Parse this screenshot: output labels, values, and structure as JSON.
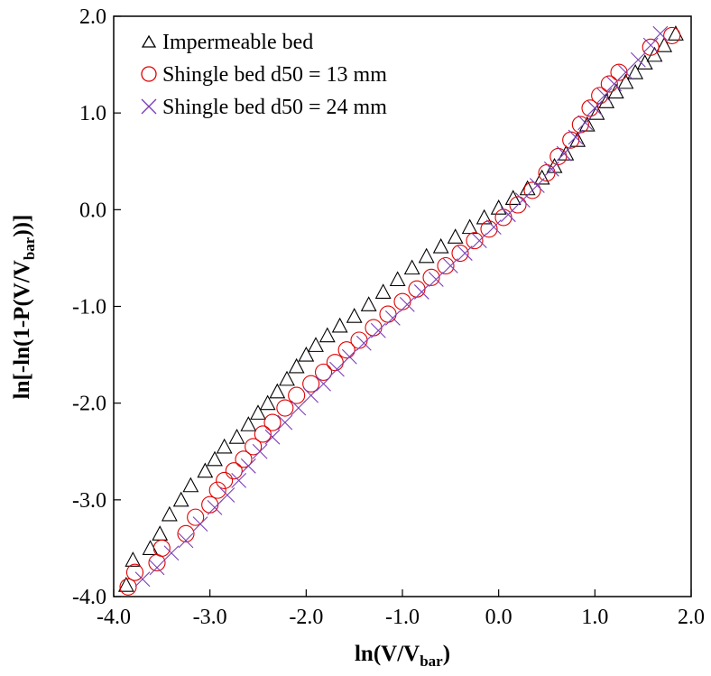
{
  "chart_data": {
    "type": "scatter",
    "xlabel": {
      "main": "ln(V/V",
      "sub": "bar",
      "end": ")"
    },
    "ylabel": {
      "main": "ln[-ln(1-P(V/V",
      "sub": "bar",
      "end": "))]"
    },
    "xlim": [
      -4.0,
      2.0
    ],
    "ylim": [
      -4.0,
      2.0
    ],
    "x_ticks": [
      -4.0,
      -3.0,
      -2.0,
      -1.0,
      0.0,
      1.0,
      2.0
    ],
    "y_ticks": [
      -4.0,
      -3.0,
      -2.0,
      -1.0,
      0.0,
      1.0,
      2.0
    ],
    "x_tick_labels": [
      "-4.0",
      "-3.0",
      "-2.0",
      "-1.0",
      "0.0",
      "1.0",
      "2.0"
    ],
    "y_tick_labels": [
      "-4.0",
      "-3.0",
      "-2.0",
      "-1.0",
      "0.0",
      "1.0",
      "2.0"
    ],
    "grid": false,
    "legend_position": "top-left",
    "series": [
      {
        "name": "Impermeable bed",
        "marker": "triangle",
        "color": "#000000",
        "points": [
          [
            -3.87,
            -3.88
          ],
          [
            -3.8,
            -3.62
          ],
          [
            -3.62,
            -3.5
          ],
          [
            -3.52,
            -3.35
          ],
          [
            -3.42,
            -3.15
          ],
          [
            -3.3,
            -3.0
          ],
          [
            -3.2,
            -2.85
          ],
          [
            -3.05,
            -2.7
          ],
          [
            -2.95,
            -2.58
          ],
          [
            -2.85,
            -2.45
          ],
          [
            -2.72,
            -2.35
          ],
          [
            -2.6,
            -2.22
          ],
          [
            -2.5,
            -2.1
          ],
          [
            -2.4,
            -2.0
          ],
          [
            -2.3,
            -1.88
          ],
          [
            -2.2,
            -1.75
          ],
          [
            -2.1,
            -1.62
          ],
          [
            -2.0,
            -1.5
          ],
          [
            -1.9,
            -1.4
          ],
          [
            -1.78,
            -1.3
          ],
          [
            -1.65,
            -1.2
          ],
          [
            -1.5,
            -1.1
          ],
          [
            -1.35,
            -0.98
          ],
          [
            -1.2,
            -0.85
          ],
          [
            -1.05,
            -0.72
          ],
          [
            -0.9,
            -0.6
          ],
          [
            -0.75,
            -0.48
          ],
          [
            -0.6,
            -0.38
          ],
          [
            -0.45,
            -0.28
          ],
          [
            -0.3,
            -0.18
          ],
          [
            -0.15,
            -0.08
          ],
          [
            0.0,
            0.02
          ],
          [
            0.15,
            0.12
          ],
          [
            0.3,
            0.22
          ],
          [
            0.45,
            0.33
          ],
          [
            0.58,
            0.45
          ],
          [
            0.7,
            0.58
          ],
          [
            0.82,
            0.72
          ],
          [
            0.92,
            0.88
          ],
          [
            1.02,
            1.0
          ],
          [
            1.12,
            1.12
          ],
          [
            1.22,
            1.22
          ],
          [
            1.32,
            1.32
          ],
          [
            1.42,
            1.42
          ],
          [
            1.52,
            1.52
          ],
          [
            1.62,
            1.6
          ],
          [
            1.72,
            1.7
          ],
          [
            1.84,
            1.82
          ]
        ]
      },
      {
        "name": "Shingle bed d50 = 13 mm",
        "marker": "circle",
        "color": "#e00000",
        "points": [
          [
            -3.85,
            -3.9
          ],
          [
            -3.78,
            -3.75
          ],
          [
            -3.55,
            -3.65
          ],
          [
            -3.5,
            -3.5
          ],
          [
            -3.25,
            -3.35
          ],
          [
            -3.15,
            -3.18
          ],
          [
            -3.0,
            -3.05
          ],
          [
            -2.92,
            -2.9
          ],
          [
            -2.85,
            -2.8
          ],
          [
            -2.75,
            -2.7
          ],
          [
            -2.65,
            -2.58
          ],
          [
            -2.55,
            -2.45
          ],
          [
            -2.45,
            -2.32
          ],
          [
            -2.35,
            -2.2
          ],
          [
            -2.22,
            -2.05
          ],
          [
            -2.1,
            -1.92
          ],
          [
            -1.95,
            -1.8
          ],
          [
            -1.82,
            -1.68
          ],
          [
            -1.7,
            -1.58
          ],
          [
            -1.58,
            -1.45
          ],
          [
            -1.45,
            -1.35
          ],
          [
            -1.3,
            -1.22
          ],
          [
            -1.15,
            -1.08
          ],
          [
            -1.0,
            -0.95
          ],
          [
            -0.85,
            -0.82
          ],
          [
            -0.7,
            -0.7
          ],
          [
            -0.55,
            -0.58
          ],
          [
            -0.4,
            -0.45
          ],
          [
            -0.25,
            -0.32
          ],
          [
            -0.1,
            -0.2
          ],
          [
            0.05,
            -0.08
          ],
          [
            0.2,
            0.05
          ],
          [
            0.35,
            0.2
          ],
          [
            0.5,
            0.38
          ],
          [
            0.62,
            0.55
          ],
          [
            0.75,
            0.72
          ],
          [
            0.85,
            0.88
          ],
          [
            0.95,
            1.05
          ],
          [
            1.05,
            1.18
          ],
          [
            1.15,
            1.3
          ],
          [
            1.25,
            1.42
          ],
          [
            1.58,
            1.68
          ],
          [
            1.8,
            1.8
          ]
        ]
      },
      {
        "name": "Shingle bed d50 = 24 mm",
        "marker": "cross",
        "color": "#7a3db8",
        "points": [
          [
            -3.7,
            -3.82
          ],
          [
            -3.55,
            -3.7
          ],
          [
            -3.4,
            -3.55
          ],
          [
            -3.25,
            -3.42
          ],
          [
            -3.1,
            -3.25
          ],
          [
            -2.95,
            -3.08
          ],
          [
            -2.82,
            -2.95
          ],
          [
            -2.7,
            -2.8
          ],
          [
            -2.6,
            -2.65
          ],
          [
            -2.48,
            -2.5
          ],
          [
            -2.35,
            -2.35
          ],
          [
            -2.22,
            -2.2
          ],
          [
            -2.08,
            -2.05
          ],
          [
            -1.95,
            -1.92
          ],
          [
            -1.82,
            -1.8
          ],
          [
            -1.68,
            -1.65
          ],
          [
            -1.55,
            -1.52
          ],
          [
            -1.4,
            -1.38
          ],
          [
            -1.25,
            -1.25
          ],
          [
            -1.1,
            -1.12
          ],
          [
            -0.95,
            -0.98
          ],
          [
            -0.8,
            -0.85
          ],
          [
            -0.65,
            -0.72
          ],
          [
            -0.5,
            -0.58
          ],
          [
            -0.35,
            -0.45
          ],
          [
            -0.2,
            -0.32
          ],
          [
            -0.05,
            -0.18
          ],
          [
            0.1,
            -0.05
          ],
          [
            0.25,
            0.1
          ],
          [
            0.4,
            0.25
          ],
          [
            0.55,
            0.42
          ],
          [
            0.68,
            0.58
          ],
          [
            0.8,
            0.75
          ],
          [
            0.9,
            0.9
          ],
          [
            1.0,
            1.05
          ],
          [
            1.1,
            1.18
          ],
          [
            1.2,
            1.3
          ],
          [
            1.32,
            1.42
          ],
          [
            1.45,
            1.55
          ],
          [
            1.58,
            1.7
          ],
          [
            1.68,
            1.82
          ]
        ]
      }
    ]
  }
}
